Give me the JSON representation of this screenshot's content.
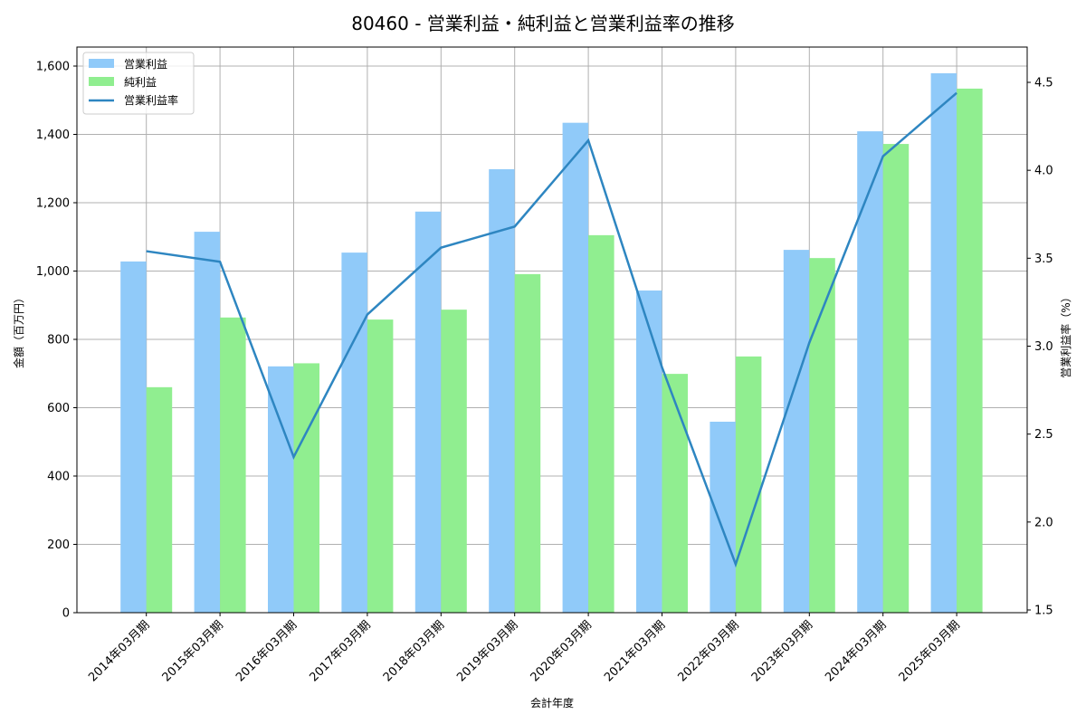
{
  "chart_data": {
    "type": "bar+line",
    "title": "80460 - 営業利益・純利益と営業利益率の推移",
    "xlabel": "会計年度",
    "ylabel": "金額（百万円）",
    "y2label": "営業利益率（%）",
    "categories": [
      "2014年03月期",
      "2015年03月期",
      "2016年03月期",
      "2017年03月期",
      "2018年03月期",
      "2019年03月期",
      "2020年03月期",
      "2021年03月期",
      "2022年03月期",
      "2023年03月期",
      "2024年03月期",
      "2025年03月期"
    ],
    "series": [
      {
        "name": "営業利益",
        "type": "bar",
        "axis": "left",
        "color": "#90CAF9",
        "values": [
          1028,
          1115,
          721,
          1054,
          1174,
          1298,
          1434,
          943,
          559,
          1062,
          1409,
          1579
        ]
      },
      {
        "name": "純利益",
        "type": "bar",
        "axis": "left",
        "color": "#90EE90",
        "values": [
          660,
          864,
          730,
          858,
          887,
          991,
          1105,
          699,
          750,
          1038,
          1372,
          1534
        ]
      },
      {
        "name": "営業利益率",
        "type": "line",
        "axis": "right",
        "color": "#2E86C1",
        "values": [
          3.54,
          3.48,
          2.37,
          3.18,
          3.56,
          3.68,
          4.17,
          2.88,
          1.76,
          3.02,
          4.08,
          4.44
        ]
      }
    ],
    "ylim": [
      0,
      1650
    ],
    "y2lim": [
      1.5,
      4.7
    ],
    "yticks": [
      0,
      200,
      400,
      600,
      800,
      1000,
      1200,
      1400,
      1600
    ],
    "ytick_labels": [
      "0",
      "200",
      "400",
      "600",
      "800",
      "1,000",
      "1,200",
      "1,400",
      "1,600"
    ],
    "y2ticks": [
      1.5,
      2.0,
      2.5,
      3.0,
      3.5,
      4.0,
      4.5
    ],
    "y2tick_labels": [
      "1.5",
      "2.0",
      "2.5",
      "3.0",
      "3.5",
      "4.0",
      "4.5"
    ],
    "grid": true,
    "legend_position": "upper left"
  }
}
